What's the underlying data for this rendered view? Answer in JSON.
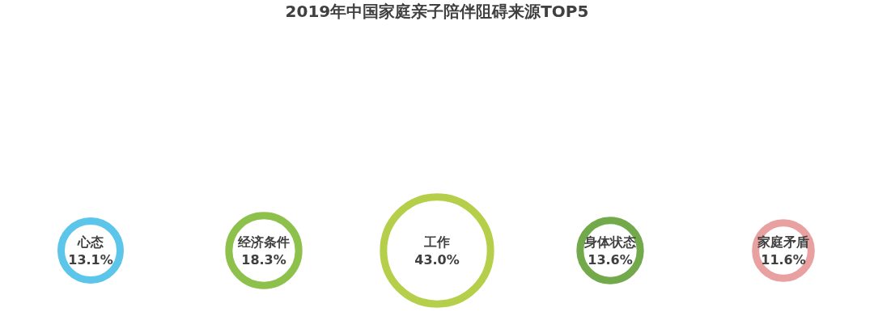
{
  "chart_data": {
    "type": "other",
    "title": "2019年中国家庭亲子陪伴阻碍来源TOP5",
    "categories": [
      "心态",
      "经济条件",
      "工作",
      "身体状态",
      "家庭矛盾"
    ],
    "values": [
      13.1,
      18.3,
      43.0,
      13.6,
      11.6
    ],
    "value_labels": [
      "13.1%",
      "18.3%",
      "43.0%",
      "13.6%",
      "11.6%"
    ],
    "colors": [
      "#5bc5ea",
      "#8dc14b",
      "#b5cf4a",
      "#72a94a",
      "#e8a0a0"
    ]
  }
}
